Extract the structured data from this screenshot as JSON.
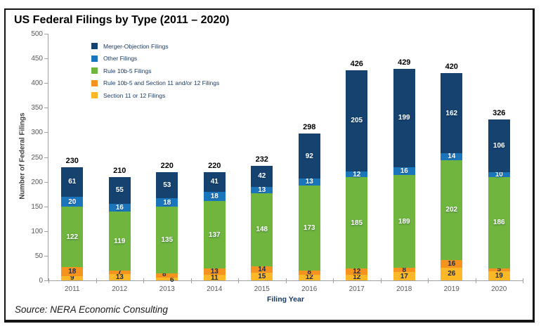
{
  "source": "Source: NERA Economic Consulting",
  "chart_data": {
    "type": "bar",
    "subtype": "stacked-vertical",
    "title": "US Federal Filings by Type (2011 – 2020)",
    "xlabel": "Filing Year",
    "ylabel": "Number of Federal Filings",
    "ylim": [
      0,
      500
    ],
    "ytick_step": 50,
    "grid": false,
    "legend_position": "top-left-inside",
    "categories": [
      "2011",
      "2012",
      "2013",
      "2014",
      "2015",
      "2016",
      "2017",
      "2018",
      "2019",
      "2020"
    ],
    "series": [
      {
        "name": "Merger-Objection Filings",
        "color": "#15426f",
        "label_color": "#ffffff",
        "values": [
          61,
          55,
          53,
          41,
          42,
          92,
          205,
          199,
          162,
          106
        ]
      },
      {
        "name": "Other Filings",
        "color": "#1b75bb",
        "label_color": "#ffffff",
        "values": [
          20,
          16,
          18,
          18,
          13,
          13,
          12,
          16,
          14,
          10
        ]
      },
      {
        "name": "Rule 10b-5 Filings",
        "color": "#6fb53e",
        "label_color": "#ffffff",
        "values": [
          122,
          119,
          135,
          137,
          148,
          173,
          185,
          189,
          202,
          186
        ]
      },
      {
        "name": "Rule 10b-5 and Section 11 and/or 12 Filings",
        "color": "#f6921e",
        "label_color": "#1b2a4a",
        "values": [
          18,
          7,
          8,
          13,
          14,
          8,
          12,
          8,
          16,
          5
        ]
      },
      {
        "name": "Section 11 or 12 Filings",
        "color": "#fcb826",
        "label_color": "#1b2a4a",
        "values": [
          9,
          13,
          6,
          11,
          15,
          12,
          12,
          17,
          26,
          19
        ]
      }
    ],
    "totals": [
      230,
      210,
      220,
      220,
      232,
      298,
      426,
      429,
      420,
      326
    ]
  }
}
